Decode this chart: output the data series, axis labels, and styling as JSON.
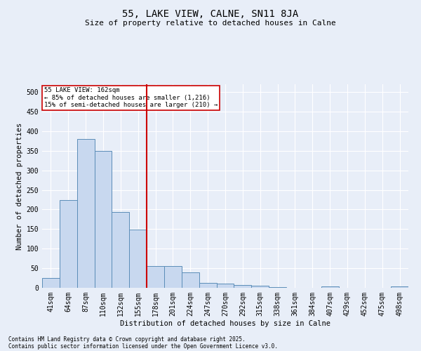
{
  "title1": "55, LAKE VIEW, CALNE, SN11 8JA",
  "title2": "Size of property relative to detached houses in Calne",
  "xlabel": "Distribution of detached houses by size in Calne",
  "ylabel": "Number of detached properties",
  "categories": [
    "41sqm",
    "64sqm",
    "87sqm",
    "110sqm",
    "132sqm",
    "155sqm",
    "178sqm",
    "201sqm",
    "224sqm",
    "247sqm",
    "270sqm",
    "292sqm",
    "315sqm",
    "338sqm",
    "361sqm",
    "384sqm",
    "407sqm",
    "429sqm",
    "452sqm",
    "475sqm",
    "498sqm"
  ],
  "values": [
    25,
    225,
    380,
    350,
    193,
    148,
    55,
    55,
    40,
    12,
    10,
    8,
    5,
    2,
    0,
    0,
    3,
    0,
    0,
    0,
    3
  ],
  "bar_color": "#c8d8ef",
  "bar_edge_color": "#5b8db8",
  "vline_x": 5.5,
  "vline_color": "#cc0000",
  "annotation_title": "55 LAKE VIEW: 162sqm",
  "annotation_line1": "← 85% of detached houses are smaller (1,216)",
  "annotation_line2": "15% of semi-detached houses are larger (210) →",
  "annotation_box_color": "#cc0000",
  "ylim": [
    0,
    520
  ],
  "yticks": [
    0,
    50,
    100,
    150,
    200,
    250,
    300,
    350,
    400,
    450,
    500
  ],
  "footer1": "Contains HM Land Registry data © Crown copyright and database right 2025.",
  "footer2": "Contains public sector information licensed under the Open Government Licence v3.0.",
  "bg_color": "#e8eef8",
  "plot_bg_color": "#e8eef8",
  "grid_color": "#ffffff",
  "title1_fontsize": 10,
  "title2_fontsize": 8,
  "ylabel_fontsize": 7.5,
  "xlabel_fontsize": 7.5,
  "tick_fontsize": 7,
  "footer_fontsize": 5.5,
  "ann_fontsize": 6.5
}
